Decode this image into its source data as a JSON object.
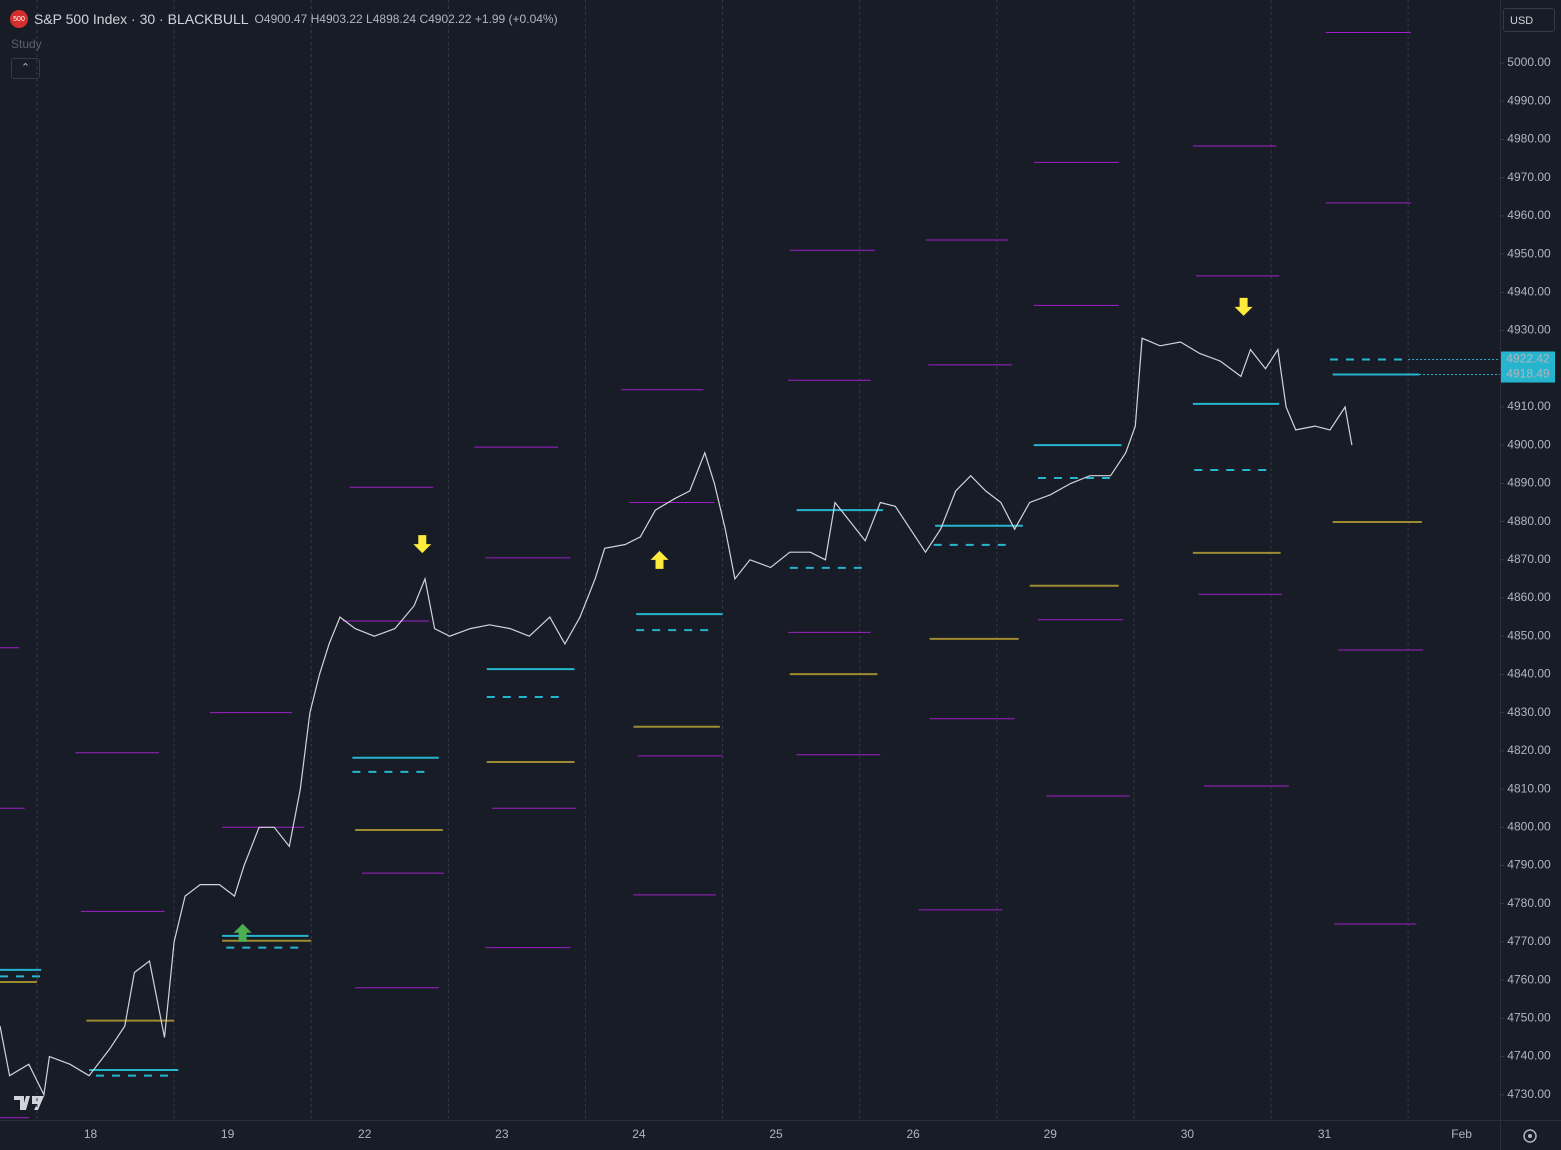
{
  "header": {
    "badge": "500",
    "symbol": "S&P 500 Index · 30 · BLACKBULL",
    "open_label": "O",
    "open": 4900.47,
    "high_label": "H",
    "high": 4903.22,
    "low_label": "L",
    "low": 4898.24,
    "close_label": "C",
    "close": 4902.22,
    "change": "+1.99 (+0.04%)",
    "study": "Study",
    "currency": "USD"
  },
  "chart_data": {
    "type": "line",
    "color": "#d1d4dc",
    "x": [
      -0.66,
      -0.59,
      -0.45,
      -0.34,
      -0.3,
      -0.15,
      -0.01,
      0.14,
      0.25,
      0.32,
      0.43,
      0.54,
      0.61,
      0.69,
      0.8,
      0.94,
      1.05,
      1.12,
      1.23,
      1.34,
      1.45,
      1.53,
      1.6,
      1.67,
      1.74,
      1.82,
      1.93,
      2.07,
      2.22,
      2.36,
      2.44,
      2.51,
      2.62,
      2.77,
      2.91,
      3.06,
      3.2,
      3.35,
      3.46,
      3.57,
      3.68,
      3.75,
      3.9,
      4.01,
      4.12,
      4.26,
      4.37,
      4.48,
      4.55,
      4.63,
      4.7,
      4.81,
      4.96,
      5.1,
      5.25,
      5.36,
      5.43,
      5.54,
      5.65,
      5.76,
      5.87,
      5.98,
      6.09,
      6.2,
      6.31,
      6.42,
      6.53,
      6.64,
      6.74,
      6.85,
      7.0,
      7.15,
      7.29,
      7.44,
      7.55,
      7.62,
      7.67,
      7.8,
      7.95,
      8.09,
      8.24,
      8.39,
      8.46,
      8.57,
      8.66,
      8.72,
      8.79,
      8.93,
      9.04,
      9.15,
      9.2
    ],
    "values": [
      4748,
      4735,
      4738,
      4730,
      4740,
      4738,
      4735,
      4742,
      4748,
      4762,
      4765,
      4745,
      4770,
      4782,
      4785,
      4785,
      4782,
      4790,
      4800,
      4800,
      4795,
      4810,
      4830,
      4840,
      4848,
      4855,
      4852,
      4850,
      4852,
      4858,
      4865,
      4852,
      4850,
      4852,
      4853,
      4852,
      4850,
      4855,
      4848,
      4855,
      4865,
      4873,
      4874,
      4876,
      4883,
      4886,
      4888,
      4898,
      4890,
      4878,
      4865,
      4870,
      4868,
      4872,
      4872,
      4870,
      4885,
      4880,
      4875,
      4885,
      4884,
      4878,
      4872,
      4878,
      4888,
      4892,
      4888,
      4885,
      4878,
      4885,
      4887,
      4890,
      4892,
      4892,
      4898,
      4905,
      4928,
      4926,
      4927,
      4924,
      4922,
      4918,
      4925,
      4920,
      4925,
      4910,
      4904,
      4905,
      4904,
      4910,
      4900
    ],
    "xlim": [
      -0.66,
      10.28
    ],
    "xticks": [
      {
        "value": 0,
        "label": "18"
      },
      {
        "value": 1,
        "label": "19"
      },
      {
        "value": 2,
        "label": "22"
      },
      {
        "value": 3,
        "label": "23"
      },
      {
        "value": 4,
        "label": "24"
      },
      {
        "value": 5,
        "label": "25"
      },
      {
        "value": 6,
        "label": "26"
      },
      {
        "value": 7,
        "label": "29"
      },
      {
        "value": 8,
        "label": "30"
      },
      {
        "value": 9,
        "label": "31"
      },
      {
        "value": 10,
        "label": "Feb"
      }
    ],
    "ylim": [
      4723.4,
      5016.5
    ],
    "yticks": [
      {
        "value": 4730,
        "label": "4730.00"
      },
      {
        "value": 4740,
        "label": "4740.00"
      },
      {
        "value": 4750,
        "label": "4750.00"
      },
      {
        "value": 4760,
        "label": "4760.00"
      },
      {
        "value": 4770,
        "label": "4770.00"
      },
      {
        "value": 4780,
        "label": "4780.00"
      },
      {
        "value": 4790,
        "label": "4790.00"
      },
      {
        "value": 4800,
        "label": "4800.00"
      },
      {
        "value": 4810,
        "label": "4810.00"
      },
      {
        "value": 4820,
        "label": "4820.00"
      },
      {
        "value": 4830,
        "label": "4830.00"
      },
      {
        "value": 4840,
        "label": "4840.00"
      },
      {
        "value": 4850,
        "label": "4850.00"
      },
      {
        "value": 4860,
        "label": "4860.00"
      },
      {
        "value": 4870,
        "label": "4870.00"
      },
      {
        "value": 4880,
        "label": "4880.00"
      },
      {
        "value": 4890,
        "label": "4890.00"
      },
      {
        "value": 4900,
        "label": "4900.00"
      },
      {
        "value": 4910,
        "label": "4910.00"
      },
      {
        "value": 4920,
        "label": "4920.00"
      },
      {
        "value": 4930,
        "label": "4930.00"
      },
      {
        "value": 4940,
        "label": "4940.00"
      },
      {
        "value": 4950,
        "label": "4950.00"
      },
      {
        "value": 4960,
        "label": "4960.00"
      },
      {
        "value": 4970,
        "label": "4970.00"
      },
      {
        "value": 4980,
        "label": "4980.00"
      },
      {
        "value": 4990,
        "label": "4990.00"
      },
      {
        "value": 5000,
        "label": "5000.00"
      }
    ],
    "level_sets": [
      {
        "color": "#a020c8",
        "dashed": false,
        "width": 1,
        "segments": [
          {
            "x": [
              -0.66,
              -0.52
            ],
            "value": 4847
          },
          {
            "x": [
              -0.66,
              -0.48
            ],
            "value": 4805
          },
          {
            "x": [
              -0.66,
              -0.45
            ],
            "value": 4724
          },
          {
            "x": [
              -0.11,
              0.5
            ],
            "value": 4819.5
          },
          {
            "x": [
              -0.07,
              0.54
            ],
            "value": 4778
          },
          {
            "x": [
              0.87,
              1.47
            ],
            "value": 4830
          },
          {
            "x": [
              0.96,
              1.56
            ],
            "value": 4800
          },
          {
            "x": [
              1.89,
              2.5
            ],
            "value": 4889
          },
          {
            "x": [
              1.84,
              2.47
            ],
            "value": 4854
          },
          {
            "x": [
              1.98,
              2.58
            ],
            "value": 4788
          },
          {
            "x": [
              1.93,
              2.54
            ],
            "value": 4758
          },
          {
            "x": [
              2.8,
              3.41
            ],
            "value": 4899.5
          },
          {
            "x": [
              2.88,
              3.5
            ],
            "value": 4870.5
          },
          {
            "x": [
              2.93,
              3.54
            ],
            "value": 4805
          },
          {
            "x": [
              2.88,
              3.5
            ],
            "value": 4768.5
          },
          {
            "x": [
              3.87,
              4.47
            ],
            "value": 4914.5
          },
          {
            "x": [
              3.93,
              4.55
            ],
            "value": 4885
          },
          {
            "x": [
              3.99,
              4.61
            ],
            "value": 4818.7
          },
          {
            "x": [
              3.96,
              4.56
            ],
            "value": 4782.3
          },
          {
            "x": [
              5.1,
              5.72
            ],
            "value": 4951
          },
          {
            "x": [
              5.09,
              5.69
            ],
            "value": 4917
          },
          {
            "x": [
              5.09,
              5.69
            ],
            "value": 4851
          },
          {
            "x": [
              5.15,
              5.76
            ],
            "value": 4819
          },
          {
            "x": [
              6.09,
              6.69
            ],
            "value": 4953.7
          },
          {
            "x": [
              6.11,
              6.72
            ],
            "value": 4921
          },
          {
            "x": [
              6.12,
              6.74
            ],
            "value": 4828.4
          },
          {
            "x": [
              6.04,
              6.65
            ],
            "value": 4778.4
          },
          {
            "x": [
              6.88,
              7.5
            ],
            "value": 4974
          },
          {
            "x": [
              6.88,
              7.5
            ],
            "value": 4936.6
          },
          {
            "x": [
              6.91,
              7.53
            ],
            "value": 4854.3
          },
          {
            "x": [
              6.97,
              7.58
            ],
            "value": 4808.2
          },
          {
            "x": [
              8.04,
              8.65
            ],
            "value": 4978.3
          },
          {
            "x": [
              8.06,
              8.67
            ],
            "value": 4944.3
          },
          {
            "x": [
              8.08,
              8.69
            ],
            "value": 4861
          },
          {
            "x": [
              8.12,
              8.74
            ],
            "value": 4810.8
          },
          {
            "x": [
              9.01,
              9.63
            ],
            "value": 5008
          },
          {
            "x": [
              9.01,
              9.63
            ],
            "value": 4963.4
          },
          {
            "x": [
              9.1,
              9.72
            ],
            "value": 4846.4
          },
          {
            "x": [
              9.07,
              9.67
            ],
            "value": 4774.7
          }
        ]
      },
      {
        "color": "#9e8a30",
        "dashed": false,
        "width": 2,
        "segments": [
          {
            "x": [
              -0.66,
              -0.39
            ],
            "value": 4759.5
          },
          {
            "x": [
              -0.03,
              0.61
            ],
            "value": 4749.4
          },
          {
            "x": [
              0.96,
              1.61
            ],
            "value": 4770.3
          },
          {
            "x": [
              1.93,
              2.57
            ],
            "value": 4799.3
          },
          {
            "x": [
              2.89,
              3.53
            ],
            "value": 4817.1
          },
          {
            "x": [
              3.96,
              4.59
            ],
            "value": 4826.3
          },
          {
            "x": [
              5.1,
              5.74
            ],
            "value": 4840.1
          },
          {
            "x": [
              6.12,
              6.77
            ],
            "value": 4849.3
          },
          {
            "x": [
              6.85,
              7.5
            ],
            "value": 4863.2
          },
          {
            "x": [
              8.04,
              8.68
            ],
            "value": 4871.8
          },
          {
            "x": [
              9.06,
              9.71
            ],
            "value": 4879.9
          }
        ]
      },
      {
        "color": "#26b5cf",
        "dashed": false,
        "width": 2,
        "segments": [
          {
            "x": [
              -0.66,
              -0.36
            ],
            "value": 4762.7
          },
          {
            "x": [
              -0.01,
              0.64
            ],
            "value": 4736.5
          },
          {
            "x": [
              0.96,
              1.59
            ],
            "value": 4771.6
          },
          {
            "x": [
              1.91,
              2.54
            ],
            "value": 4818.2
          },
          {
            "x": [
              2.89,
              3.53
            ],
            "value": 4841.4
          },
          {
            "x": [
              3.98,
              4.61
            ],
            "value": 4855.8
          },
          {
            "x": [
              5.15,
              5.78
            ],
            "value": 4883
          },
          {
            "x": [
              6.16,
              6.8
            ],
            "value": 4878.9
          },
          {
            "x": [
              6.88,
              7.52
            ],
            "value": 4900
          },
          {
            "x": [
              8.04,
              8.67
            ],
            "value": 4910.8
          },
          {
            "x": [
              9.06,
              9.69
            ],
            "value": 4918.49
          }
        ]
      },
      {
        "color": "#26b5cf",
        "dashed": true,
        "width": 2,
        "segments": [
          {
            "x": [
              -0.66,
              -0.36
            ],
            "value": 4761
          },
          {
            "x": [
              0.04,
              0.61
            ],
            "value": 4735
          },
          {
            "x": [
              0.99,
              1.56
            ],
            "value": 4768.5
          },
          {
            "x": [
              1.91,
              2.47
            ],
            "value": 4814.5
          },
          {
            "x": [
              2.89,
              3.46
            ],
            "value": 4834.1
          },
          {
            "x": [
              3.98,
              4.55
            ],
            "value": 4851.6
          },
          {
            "x": [
              5.1,
              5.67
            ],
            "value": 4867.9
          },
          {
            "x": [
              6.15,
              6.72
            ],
            "value": 4873.9
          },
          {
            "x": [
              6.91,
              7.48
            ],
            "value": 4891.4
          },
          {
            "x": [
              8.05,
              8.61
            ],
            "value": 4893.5
          },
          {
            "x": [
              9.04,
              9.61
            ],
            "value": 4922.42
          }
        ]
      }
    ],
    "price_labels": [
      {
        "set": 3,
        "segment": 10
      },
      {
        "set": 2,
        "segment": 10
      }
    ],
    "arrows": [
      {
        "x": 1.11,
        "value": 4775.8,
        "direction": "up",
        "color": "#4caf50"
      },
      {
        "x": 2.42,
        "value": 4870.7,
        "direction": "down",
        "color": "#ffeb3b"
      },
      {
        "x": 4.15,
        "value": 4873.4,
        "direction": "up",
        "color": "#ffeb3b"
      },
      {
        "x": 8.41,
        "value": 4932.8,
        "direction": "down",
        "color": "#ffeb3b"
      }
    ]
  }
}
